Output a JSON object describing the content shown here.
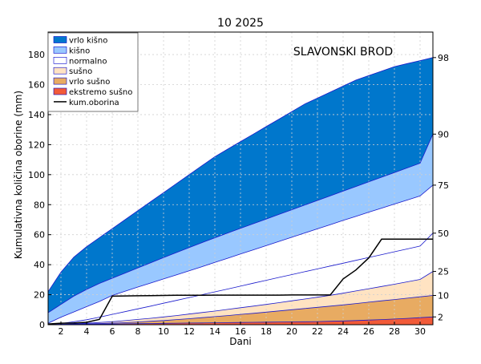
{
  "chart_data": {
    "type": "area",
    "title": "10 2025",
    "annotation": "SLAVONSKI BROD",
    "xlabel": "Dani",
    "ylabel": "Kumulativna količina oborine (mm)",
    "xlim": [
      1,
      31
    ],
    "ylim": [
      0,
      195
    ],
    "x_ticks": [
      2,
      4,
      6,
      8,
      10,
      12,
      14,
      16,
      18,
      20,
      22,
      24,
      26,
      28,
      30
    ],
    "y_ticks": [
      0,
      20,
      40,
      60,
      80,
      100,
      120,
      140,
      160,
      180
    ],
    "grid": true,
    "legend_position": "top-left",
    "x": [
      1,
      2,
      3,
      4,
      5,
      6,
      7,
      8,
      9,
      10,
      11,
      12,
      13,
      14,
      15,
      16,
      17,
      18,
      19,
      20,
      21,
      22,
      23,
      24,
      25,
      26,
      27,
      28,
      29,
      30,
      31
    ],
    "percentile_curves": [
      {
        "percentile": "2",
        "values": [
          0,
          0.1,
          0.2,
          0.3,
          0.4,
          0.5,
          0.6,
          0.7,
          0.8,
          0.9,
          1.0,
          1.1,
          1.2,
          1.3,
          1.4,
          1.5,
          1.6,
          1.7,
          1.8,
          1.9,
          2.0,
          2.1,
          2.3,
          2.5,
          2.8,
          3.1,
          3.4,
          3.8,
          4.2,
          4.7,
          5.2
        ]
      },
      {
        "percentile": "10",
        "values": [
          0,
          0.2,
          0.4,
          0.6,
          0.8,
          1.0,
          1.4,
          1.8,
          2.3,
          2.8,
          3.4,
          4.0,
          4.7,
          5.4,
          6.1,
          6.9,
          7.6,
          8.4,
          9.2,
          10.0,
          10.8,
          11.6,
          12.4,
          13.2,
          14.1,
          15.0,
          15.9,
          16.8,
          17.7,
          18.6,
          19.5
        ]
      },
      {
        "percentile": "25",
        "values": [
          0,
          0.3,
          0.6,
          1.0,
          1.5,
          2.0,
          2.7,
          3.5,
          4.3,
          5.2,
          6.1,
          7.1,
          8.1,
          9.1,
          10.2,
          11.3,
          12.4,
          13.5,
          14.7,
          15.9,
          17.1,
          18.3,
          19.6,
          21.0,
          22.5,
          24.0,
          25.5,
          27.0,
          28.6,
          30.2,
          35.5
        ]
      },
      {
        "percentile": "50",
        "values": [
          0,
          0.8,
          2.0,
          3.3,
          5.0,
          6.9,
          8.7,
          10.6,
          12.4,
          14.3,
          16.2,
          18.1,
          20.0,
          21.9,
          23.8,
          25.7,
          27.7,
          29.6,
          31.5,
          33.4,
          35.3,
          37.2,
          39.1,
          41.0,
          42.9,
          44.8,
          46.7,
          48.6,
          50.5,
          52.4,
          61
        ]
      },
      {
        "percentile": "75",
        "values": [
          1,
          5.0,
          8.5,
          12.0,
          15.5,
          19.5,
          22.3,
          25.1,
          27.8,
          30.5,
          33.2,
          35.9,
          38.7,
          41.5,
          44.3,
          47.1,
          49.9,
          52.7,
          55.5,
          58.3,
          61.1,
          63.9,
          66.7,
          69.5,
          72.2,
          75.0,
          77.7,
          80.4,
          83.1,
          85.8,
          93
        ]
      },
      {
        "percentile": "90",
        "values": [
          8,
          13.5,
          19.0,
          23.5,
          27.5,
          31.0,
          34.4,
          37.9,
          41.3,
          44.7,
          48.1,
          51.4,
          54.7,
          57.9,
          61.1,
          64.2,
          67.3,
          70.4,
          73.5,
          76.6,
          79.7,
          82.8,
          85.9,
          89.0,
          92.1,
          95.2,
          98.3,
          101.4,
          104.5,
          107.6,
          127
        ]
      },
      {
        "percentile": "98",
        "values": [
          22,
          35,
          45,
          52,
          58,
          64,
          70,
          76,
          82,
          88,
          94,
          100,
          106,
          112,
          117,
          122,
          127,
          132,
          137,
          142,
          147,
          151,
          155,
          159,
          163,
          166,
          169,
          172,
          174,
          176,
          178
        ]
      }
    ],
    "band_fills": [
      {
        "name": "vrlo kišno",
        "color": "#0077cc",
        "from": "90",
        "to": "98"
      },
      {
        "name": "kišno",
        "color": "#99c8ff",
        "from": "75",
        "to": "90"
      },
      {
        "name": "normalno",
        "color": "#ffffff",
        "from": "25",
        "to": "75"
      },
      {
        "name": "sušno",
        "color": "#ffe3c2",
        "from": "10",
        "to": "25"
      },
      {
        "name": "vrlo sušno",
        "color": "#e8ab62",
        "from": "2",
        "to": "10"
      },
      {
        "name": "ekstremo sušno",
        "color": "#f25a38",
        "from": "0",
        "to": "2"
      }
    ],
    "series": [
      {
        "name": "kum.oborina",
        "color": "#000000",
        "x": [
          1,
          2,
          3,
          4,
          5,
          6,
          7,
          8,
          9,
          10,
          11,
          12,
          13,
          14,
          15,
          16,
          17,
          18,
          19,
          20,
          21,
          22,
          23,
          24,
          25,
          26,
          27,
          28,
          29,
          30,
          31
        ],
        "values": [
          0.5,
          1.0,
          1.1,
          1.6,
          3.5,
          19,
          19.2,
          19.3,
          19.4,
          19.5,
          19.6,
          19.6,
          19.6,
          19.7,
          19.7,
          19.7,
          19.7,
          19.7,
          19.7,
          19.8,
          19.8,
          19.8,
          19.8,
          30.5,
          36.5,
          44.5,
          57,
          57,
          57,
          57,
          57
        ]
      }
    ],
    "legend": [
      {
        "name": "vrlo kišno",
        "kind": "patch",
        "color": "#0077cc",
        "edge": "#0000cc"
      },
      {
        "name": "kišno",
        "kind": "patch",
        "color": "#99c8ff",
        "edge": "#0000cc"
      },
      {
        "name": "normalno",
        "kind": "patch",
        "color": "#ffffff",
        "edge": "#0000cc"
      },
      {
        "name": "sušno",
        "kind": "patch",
        "color": "#ffe3c2",
        "edge": "#0000cc"
      },
      {
        "name": "vrlo sušno",
        "kind": "patch",
        "color": "#e8ab62",
        "edge": "#0000cc"
      },
      {
        "name": "ekstremo sušno",
        "kind": "patch",
        "color": "#f25a38",
        "edge": "#0000cc"
      },
      {
        "name": "kum.oborina",
        "kind": "line",
        "color": "#000000"
      }
    ],
    "right_axis_labels": [
      "98",
      "90",
      "75",
      "50",
      "25",
      "10",
      "2"
    ]
  }
}
